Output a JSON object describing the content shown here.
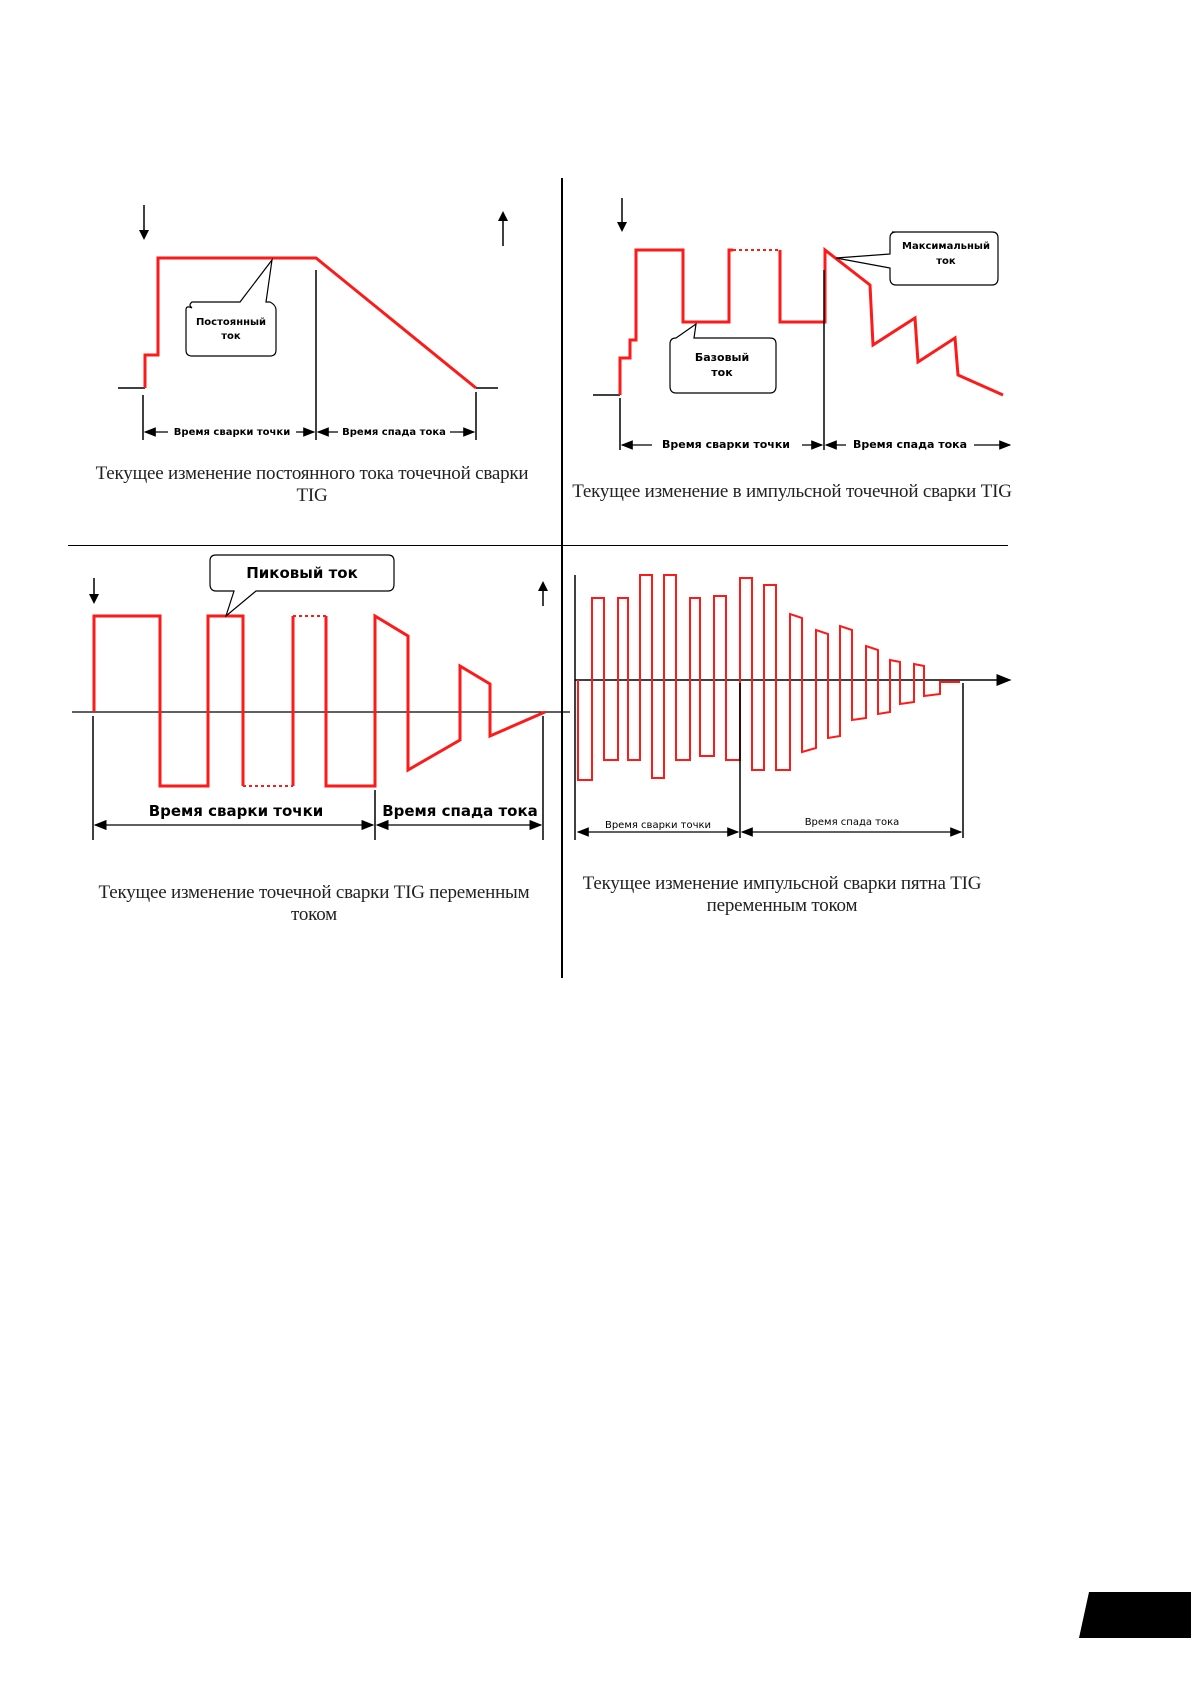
{
  "panels": [
    {
      "id": "dc-spot",
      "caption": "Текущее изменение постоянного тока точечной сварки TIG",
      "callouts": [
        "Постоянный ток"
      ],
      "intervals": [
        "Время сварки точки",
        "Время спада тока"
      ]
    },
    {
      "id": "pulse-spot",
      "caption": "Текущее изменение в импульсной точечной сварки TIG",
      "callouts": [
        "Максимальный ток",
        "Базовый ток"
      ],
      "intervals": [
        "Время сварки точки",
        "Время спада тока"
      ]
    },
    {
      "id": "ac-spot",
      "caption": "Текущее изменение точечной сварки TIG переменным током",
      "callouts": [
        "Пиковый ток"
      ],
      "intervals": [
        "Время сварки точки",
        "Время спада тока"
      ]
    },
    {
      "id": "ac-pulse-spot",
      "caption": "Текущее изменение импульсной сварки пятна TIG переменным током",
      "callouts": [],
      "intervals": [
        "Время сварки точки",
        "Время спада тока"
      ]
    }
  ],
  "colors": {
    "waveform": "#ff1a1a",
    "axis": "#000000"
  }
}
